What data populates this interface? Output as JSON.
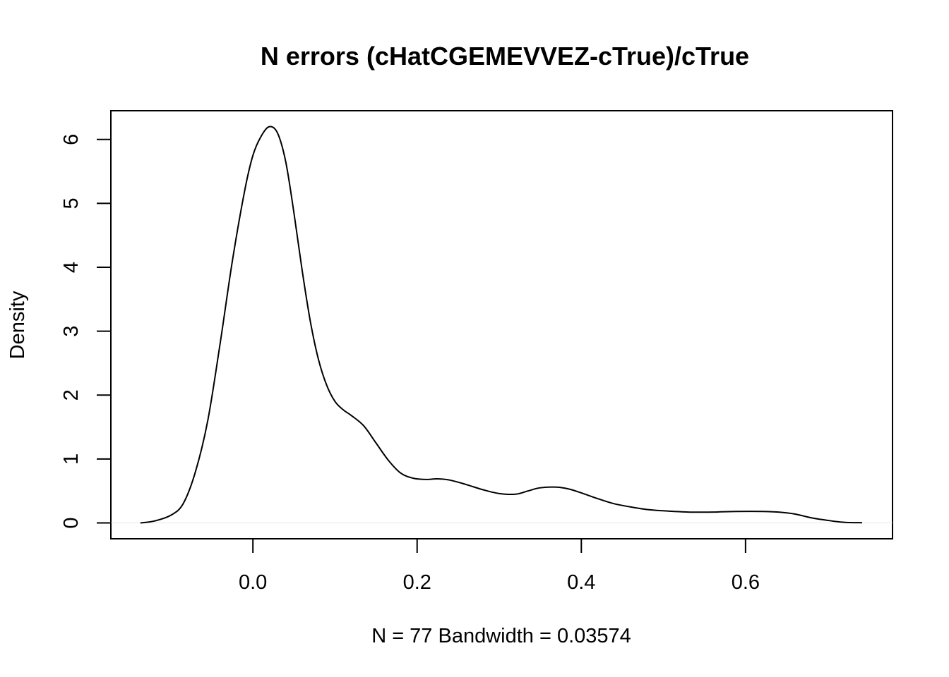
{
  "chart_data": {
    "type": "line",
    "title": "N errors (cHatCGEMEVVEZ-cTrue)/cTrue",
    "xlabel": "N = 77   Bandwidth = 0.03574",
    "ylabel": "Density",
    "xlim": [
      -0.173,
      0.779
    ],
    "ylim": [
      -0.248,
      6.45
    ],
    "x_ticks": [
      0.0,
      0.2,
      0.4,
      0.6
    ],
    "x_tick_labels": [
      "0.0",
      "0.2",
      "0.4",
      "0.6"
    ],
    "y_ticks": [
      0,
      1,
      2,
      3,
      4,
      5,
      6
    ],
    "y_tick_labels": [
      "0",
      "1",
      "2",
      "3",
      "4",
      "5",
      "6"
    ],
    "zero_line": true,
    "grid": false,
    "series": [
      {
        "line_color": "#000000",
        "x": [
          -0.137,
          -0.12,
          -0.1,
          -0.085,
          -0.07,
          -0.055,
          -0.04,
          -0.025,
          -0.01,
          0.0,
          0.01,
          0.02,
          0.03,
          0.04,
          0.05,
          0.06,
          0.07,
          0.08,
          0.09,
          0.1,
          0.11,
          0.12,
          0.135,
          0.15,
          0.165,
          0.18,
          0.195,
          0.21,
          0.225,
          0.24,
          0.26,
          0.28,
          0.3,
          0.32,
          0.335,
          0.35,
          0.37,
          0.385,
          0.4,
          0.42,
          0.44,
          0.46,
          0.48,
          0.5,
          0.53,
          0.56,
          0.59,
          0.62,
          0.64,
          0.66,
          0.68,
          0.7,
          0.72,
          0.742
        ],
        "y": [
          0.0,
          0.03,
          0.12,
          0.3,
          0.8,
          1.6,
          2.8,
          4.1,
          5.2,
          5.75,
          6.05,
          6.2,
          6.1,
          5.65,
          4.85,
          3.95,
          3.15,
          2.55,
          2.15,
          1.9,
          1.77,
          1.68,
          1.52,
          1.25,
          0.98,
          0.78,
          0.7,
          0.68,
          0.69,
          0.67,
          0.6,
          0.52,
          0.46,
          0.45,
          0.5,
          0.55,
          0.56,
          0.53,
          0.47,
          0.38,
          0.3,
          0.25,
          0.21,
          0.19,
          0.17,
          0.17,
          0.18,
          0.18,
          0.17,
          0.14,
          0.08,
          0.04,
          0.01,
          0.003
        ]
      }
    ]
  }
}
